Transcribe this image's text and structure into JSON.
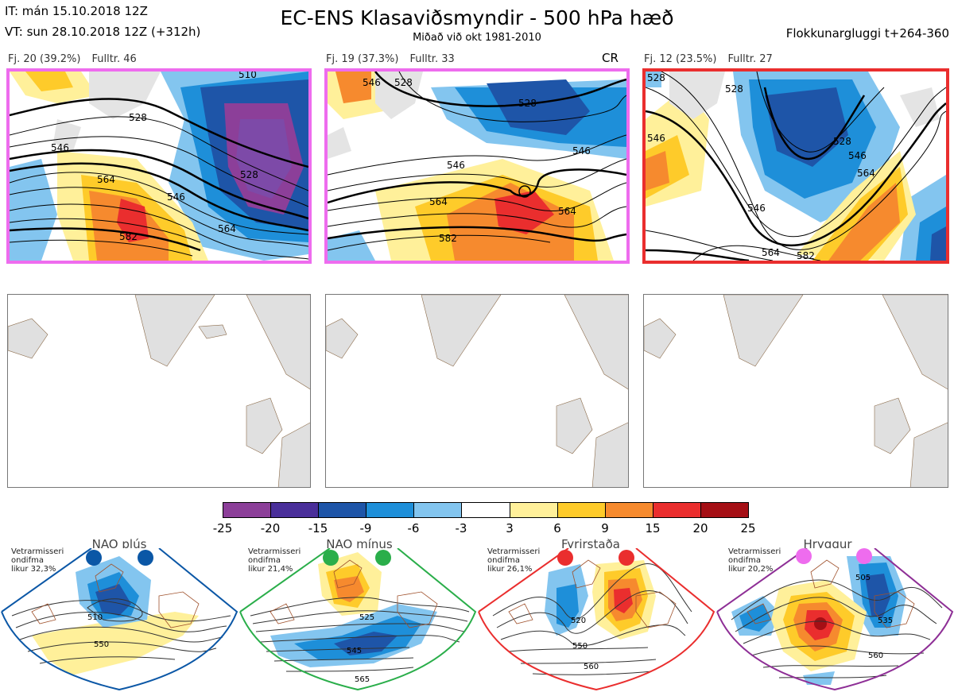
{
  "header": {
    "it": "IT: mán 15.10.2018 12Z",
    "vt": "VT: sun 28.10.2018 12Z  (+312h)",
    "title": "EC-ENS Klasaviðsmyndir - 500 hPa hæð",
    "subtitle": "Miðað við okt 1981-2010",
    "window": "Flokkunargluggi t+264-360"
  },
  "clusters": [
    {
      "label": "Fj. 20 (39.2%)",
      "members": "Fulltr. 46",
      "border": "#ee6cee",
      "tag": "",
      "contours": [
        "510",
        "528",
        "546",
        "546",
        "564",
        "582",
        "528",
        "564"
      ]
    },
    {
      "label": "Fj. 19 (37.3%)",
      "members": "Fulltr. 33",
      "border": "#ee6cee",
      "tag": "CR",
      "contours": [
        "546",
        "528",
        "528",
        "546",
        "546",
        "564",
        "564",
        "582"
      ]
    },
    {
      "label": "Fj. 12 (23.5%)",
      "members": "Fulltr. 27",
      "border": "#ea2e2e",
      "tag": "",
      "contours": [
        "528",
        "528",
        "546",
        "528",
        "546",
        "564",
        "564",
        "582",
        "546"
      ]
    }
  ],
  "colorbar": {
    "ticks": [
      "-25",
      "-20",
      "-15",
      "-9",
      "-6",
      "-3",
      "3",
      "6",
      "9",
      "15",
      "20",
      "25"
    ],
    "colors": [
      "#8c3f99",
      "#4a2f9a",
      "#1e55a8",
      "#1e8fd9",
      "#83c5ef",
      "#ffffff",
      "#fff09a",
      "#fecb2a",
      "#f68a2e",
      "#ea2e2e",
      "#a50f15"
    ]
  },
  "regimes": [
    {
      "name": "NAO plús",
      "note1": "Vetrarmisseri",
      "note2": "ondifma",
      "note3": "likur 32,3%",
      "color": "#0b57a6",
      "contours": [
        "510",
        "550"
      ]
    },
    {
      "name": "NAO mínus",
      "note1": "Vetrarmisseri",
      "note2": "ondifma",
      "note3": "likur 21,4%",
      "color": "#2aae4a",
      "contours": [
        "525",
        "545",
        "565"
      ]
    },
    {
      "name": "Fyrirstaða",
      "note1": "Vetrarmisseri",
      "note2": "ondifma",
      "note3": "likur 26,1%",
      "color": "#ea2e2e",
      "contours": [
        "520",
        "550",
        "560"
      ]
    },
    {
      "name": "Hryggur",
      "note1": "Vetrarmisseri",
      "note2": "ondifma",
      "note3": "likur 20,2%",
      "color": "#8e2f96",
      "contours": [
        "505",
        "535",
        "560"
      ]
    }
  ]
}
